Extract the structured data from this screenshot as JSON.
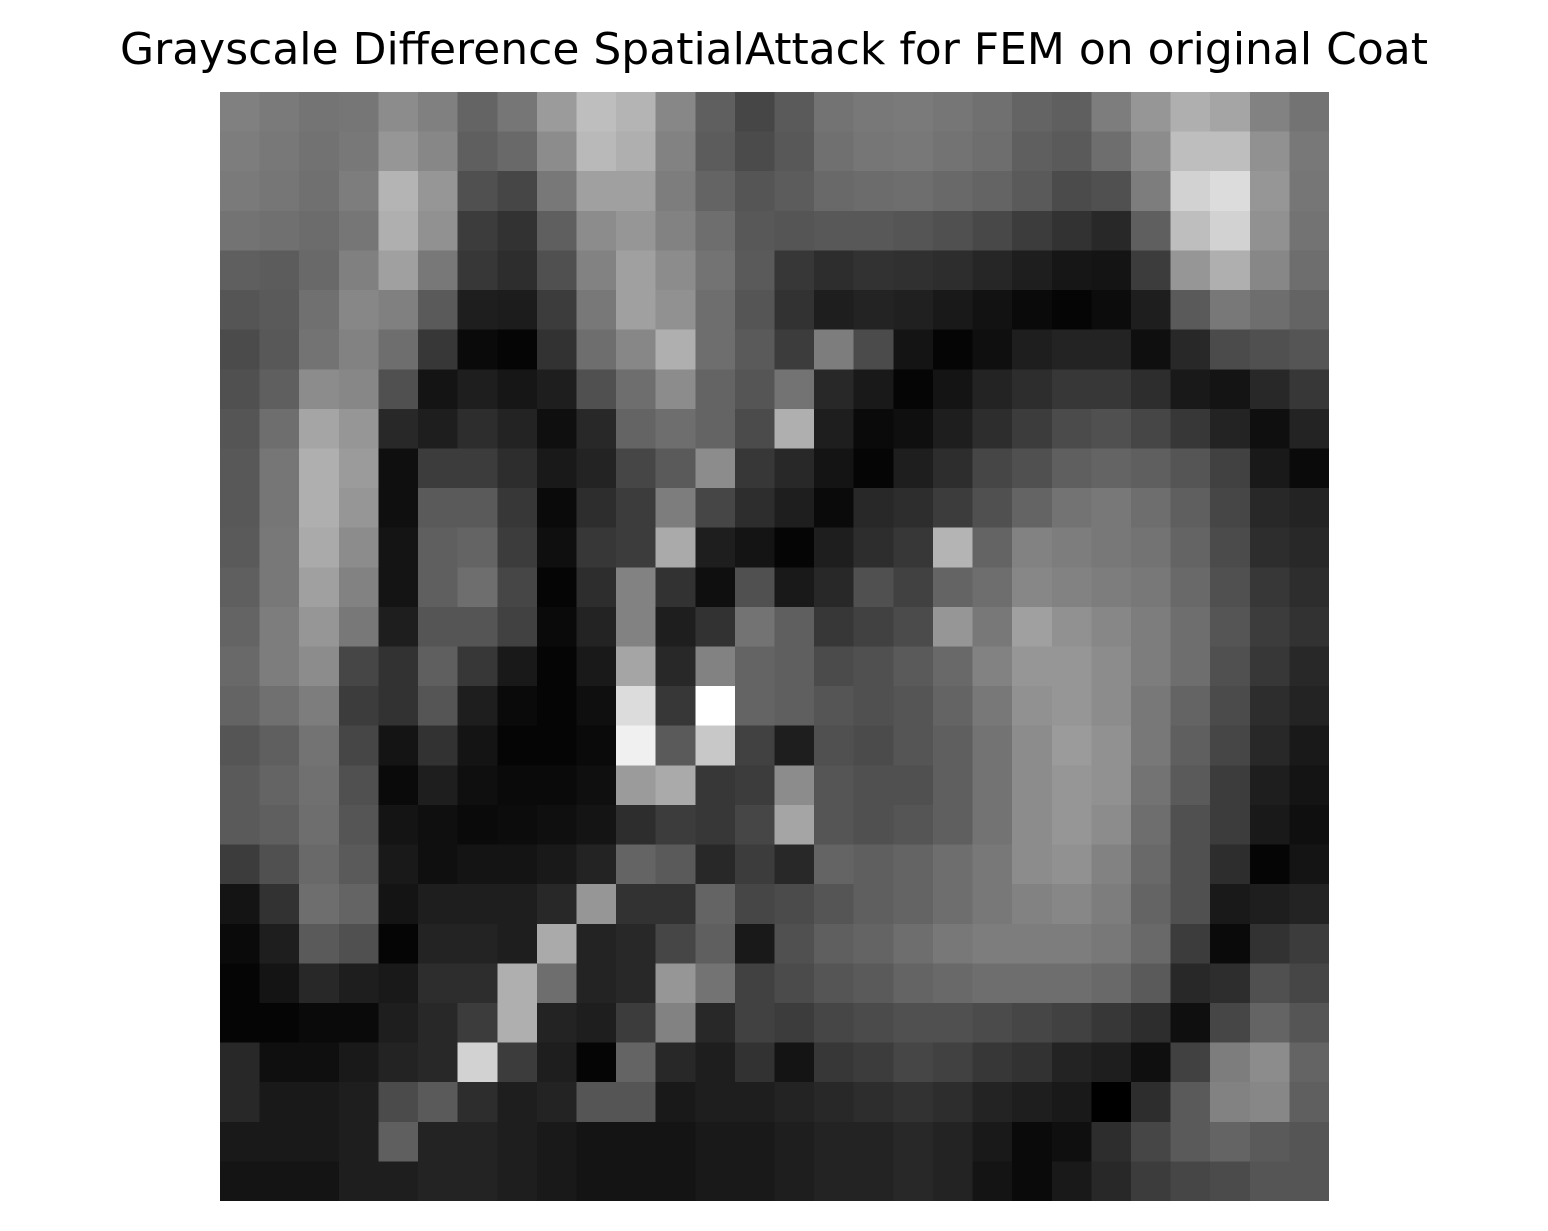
{
  "chart_data": {
    "type": "heatmap",
    "title": "Grayscale Difference SpatialAttack for FEM on original Coat",
    "xlabel": "",
    "ylabel": "",
    "colormap": "gray",
    "axes_visible": false,
    "grid": false,
    "value_range": [
      0,
      255
    ],
    "rows": 28,
    "cols": 28,
    "values": [
      [
        128,
        122,
        116,
        118,
        140,
        128,
        100,
        118,
        155,
        190,
        180,
        135,
        95,
        70,
        90,
        115,
        120,
        122,
        118,
        112,
        100,
        95,
        125,
        150,
        175,
        165,
        130,
        115
      ],
      [
        125,
        120,
        114,
        120,
        150,
        135,
        95,
        105,
        140,
        185,
        175,
        130,
        92,
        75,
        88,
        112,
        118,
        120,
        115,
        110,
        95,
        90,
        110,
        140,
        190,
        190,
        145,
        120
      ],
      [
        122,
        118,
        112,
        125,
        180,
        150,
        80,
        70,
        120,
        160,
        160,
        125,
        100,
        85,
        92,
        105,
        108,
        110,
        105,
        100,
        90,
        75,
        80,
        125,
        210,
        220,
        150,
        118
      ],
      [
        115,
        112,
        108,
        118,
        175,
        145,
        60,
        50,
        95,
        140,
        150,
        130,
        110,
        88,
        85,
        88,
        88,
        85,
        80,
        72,
        60,
        50,
        40,
        95,
        190,
        210,
        145,
        115
      ],
      [
        95,
        92,
        105,
        128,
        160,
        120,
        55,
        45,
        80,
        130,
        160,
        140,
        115,
        90,
        55,
        45,
        50,
        48,
        45,
        38,
        30,
        22,
        20,
        60,
        150,
        175,
        135,
        110
      ],
      [
        85,
        90,
        112,
        135,
        128,
        90,
        30,
        28,
        60,
        120,
        160,
        145,
        110,
        85,
        50,
        30,
        35,
        32,
        25,
        18,
        10,
        5,
        12,
        30,
        90,
        120,
        110,
        100
      ],
      [
        75,
        88,
        115,
        130,
        110,
        55,
        10,
        5,
        50,
        110,
        135,
        175,
        110,
        90,
        60,
        125,
        75,
        20,
        5,
        15,
        30,
        35,
        35,
        15,
        40,
        75,
        80,
        85
      ],
      [
        80,
        95,
        140,
        135,
        80,
        20,
        30,
        22,
        30,
        80,
        110,
        140,
        100,
        85,
        115,
        40,
        25,
        5,
        20,
        35,
        45,
        55,
        55,
        45,
        25,
        20,
        40,
        55
      ],
      [
        85,
        110,
        165,
        150,
        40,
        30,
        45,
        35,
        15,
        40,
        100,
        110,
        100,
        75,
        175,
        30,
        10,
        15,
        30,
        45,
        60,
        75,
        80,
        70,
        55,
        35,
        15,
        35
      ],
      [
        88,
        118,
        175,
        155,
        15,
        60,
        60,
        45,
        25,
        35,
        70,
        90,
        140,
        55,
        40,
        20,
        5,
        30,
        45,
        70,
        80,
        95,
        100,
        95,
        85,
        65,
        25,
        10
      ],
      [
        88,
        118,
        175,
        150,
        15,
        90,
        90,
        55,
        10,
        45,
        60,
        125,
        70,
        45,
        30,
        10,
        40,
        45,
        60,
        80,
        100,
        115,
        120,
        110,
        95,
        70,
        40,
        35
      ],
      [
        90,
        120,
        170,
        140,
        20,
        95,
        100,
        60,
        15,
        55,
        60,
        170,
        30,
        20,
        5,
        30,
        45,
        55,
        180,
        100,
        130,
        125,
        120,
        115,
        100,
        75,
        45,
        40
      ],
      [
        95,
        120,
        160,
        130,
        20,
        95,
        110,
        70,
        5,
        45,
        130,
        50,
        15,
        80,
        25,
        40,
        80,
        65,
        100,
        110,
        135,
        130,
        125,
        120,
        105,
        80,
        55,
        45
      ],
      [
        100,
        125,
        150,
        120,
        30,
        85,
        85,
        65,
        10,
        35,
        130,
        30,
        50,
        115,
        95,
        55,
        65,
        75,
        150,
        120,
        160,
        145,
        135,
        125,
        110,
        85,
        60,
        50
      ],
      [
        105,
        125,
        140,
        70,
        50,
        95,
        55,
        25,
        5,
        25,
        165,
        40,
        130,
        100,
        95,
        75,
        80,
        90,
        105,
        130,
        150,
        150,
        140,
        125,
        110,
        80,
        55,
        40
      ],
      [
        100,
        112,
        125,
        60,
        50,
        85,
        30,
        10,
        5,
        15,
        220,
        55,
        255,
        100,
        95,
        85,
        80,
        85,
        100,
        120,
        145,
        150,
        140,
        120,
        100,
        75,
        45,
        35
      ],
      [
        85,
        95,
        115,
        70,
        20,
        50,
        20,
        5,
        5,
        10,
        240,
        90,
        200,
        65,
        30,
        80,
        75,
        85,
        95,
        115,
        140,
        155,
        145,
        120,
        95,
        70,
        40,
        25
      ],
      [
        90,
        100,
        112,
        80,
        10,
        30,
        15,
        10,
        10,
        15,
        155,
        170,
        55,
        60,
        140,
        85,
        80,
        80,
        95,
        115,
        140,
        150,
        145,
        115,
        90,
        60,
        30,
        20
      ],
      [
        90,
        95,
        110,
        85,
        20,
        15,
        10,
        12,
        15,
        20,
        45,
        60,
        55,
        70,
        165,
        85,
        80,
        85,
        95,
        115,
        140,
        150,
        140,
        110,
        80,
        60,
        25,
        15
      ],
      [
        60,
        80,
        105,
        90,
        25,
        15,
        20,
        20,
        25,
        35,
        100,
        90,
        40,
        60,
        40,
        100,
        95,
        100,
        110,
        120,
        140,
        145,
        130,
        105,
        80,
        45,
        5,
        20
      ],
      [
        20,
        50,
        110,
        100,
        20,
        30,
        30,
        30,
        40,
        150,
        50,
        50,
        100,
        70,
        75,
        85,
        95,
        100,
        110,
        120,
        130,
        135,
        125,
        100,
        80,
        25,
        30,
        35
      ],
      [
        10,
        30,
        90,
        80,
        5,
        35,
        35,
        30,
        170,
        35,
        40,
        70,
        95,
        25,
        80,
        95,
        100,
        110,
        120,
        125,
        125,
        125,
        120,
        105,
        60,
        10,
        50,
        60
      ],
      [
        5,
        20,
        40,
        30,
        25,
        45,
        45,
        175,
        110,
        35,
        40,
        150,
        115,
        65,
        75,
        85,
        90,
        100,
        105,
        110,
        110,
        110,
        105,
        90,
        40,
        45,
        80,
        70
      ],
      [
        5,
        5,
        10,
        10,
        30,
        40,
        60,
        175,
        35,
        30,
        60,
        130,
        40,
        65,
        60,
        70,
        75,
        80,
        80,
        75,
        70,
        65,
        55,
        45,
        15,
        70,
        100,
        85
      ],
      [
        40,
        15,
        15,
        25,
        35,
        40,
        210,
        60,
        30,
        5,
        100,
        40,
        30,
        50,
        20,
        55,
        60,
        70,
        65,
        55,
        50,
        35,
        30,
        15,
        65,
        125,
        140,
        100
      ],
      [
        40,
        25,
        25,
        30,
        75,
        90,
        45,
        30,
        35,
        85,
        85,
        25,
        30,
        30,
        35,
        40,
        45,
        50,
        45,
        35,
        30,
        25,
        0,
        45,
        90,
        130,
        135,
        95
      ],
      [
        25,
        25,
        25,
        30,
        95,
        35,
        35,
        30,
        25,
        20,
        20,
        20,
        25,
        25,
        30,
        35,
        35,
        40,
        35,
        25,
        10,
        15,
        45,
        70,
        90,
        100,
        90,
        85
      ],
      [
        20,
        20,
        20,
        30,
        30,
        35,
        35,
        30,
        25,
        20,
        20,
        20,
        25,
        25,
        30,
        35,
        35,
        40,
        35,
        20,
        10,
        25,
        40,
        60,
        70,
        75,
        85,
        85
      ]
    ]
  }
}
